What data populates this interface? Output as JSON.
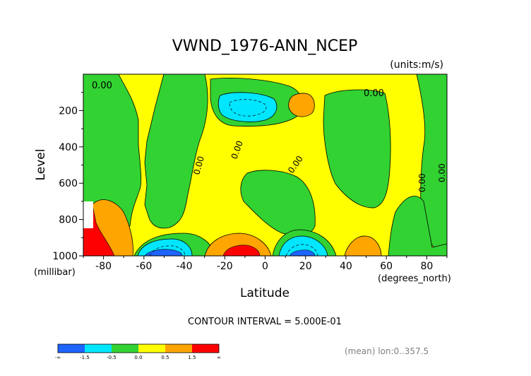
{
  "chart_data": {
    "type": "contour",
    "title": "VWND_1976-ANN_NCEP",
    "units_label": "(units:m/s)",
    "xlabel": "Latitude",
    "xunits_label": "(degrees_north)",
    "ylabel": "Level",
    "yunits_label": "(millibar)",
    "x_ticks": [
      -80,
      -60,
      -40,
      -20,
      0,
      20,
      40,
      60,
      80
    ],
    "y_ticks": [
      200,
      400,
      600,
      800,
      1000
    ],
    "xlim": [
      -90,
      90
    ],
    "ylim": [
      1000,
      0
    ],
    "contour_interval_text": "CONTOUR INTERVAL = 5.000E-01",
    "contour_labels": [
      "0.00",
      "0.00",
      "0.00",
      "0.00",
      "0.00",
      "0.00",
      "0.00"
    ],
    "colorbar": {
      "labels": [
        "-∞",
        "-1.5",
        "-0.5",
        "0.0",
        "0.5",
        "1.5",
        "∞"
      ],
      "colors": [
        "#1e64ff",
        "#00e6ff",
        "#32d232",
        "#ffff00",
        "#ffa500",
        "#ff0000"
      ]
    },
    "regions": [
      {
        "class": "negative",
        "lat_range": [
          -65,
          -40
        ],
        "level_range": [
          830,
          1000
        ],
        "value_level": "< -1.5"
      },
      {
        "class": "negative",
        "lat_range": [
          -30,
          -5
        ],
        "level_range": [
          130,
          220
        ],
        "value_level": "-1.5 to -0.5"
      },
      {
        "class": "negative",
        "lat_range": [
          5,
          25
        ],
        "level_range": [
          810,
          1000
        ],
        "value_level": "< -1.5"
      },
      {
        "class": "positive",
        "lat_range": [
          -90,
          -75
        ],
        "level_range": [
          700,
          1000
        ],
        "value_level": "> 1.5"
      },
      {
        "class": "positive",
        "lat_range": [
          -25,
          0
        ],
        "level_range": [
          880,
          1000
        ],
        "value_level": "> 1.5"
      },
      {
        "class": "positive",
        "lat_range": [
          14,
          24
        ],
        "level_range": [
          110,
          210
        ],
        "value_level": "0.5 to 1.5"
      },
      {
        "class": "positive",
        "lat_range": [
          42,
          58
        ],
        "level_range": [
          870,
          1000
        ],
        "value_level": "0.5 to 1.5"
      }
    ]
  },
  "footer": {
    "mean_text": "(mean) lon:0..357.5"
  }
}
